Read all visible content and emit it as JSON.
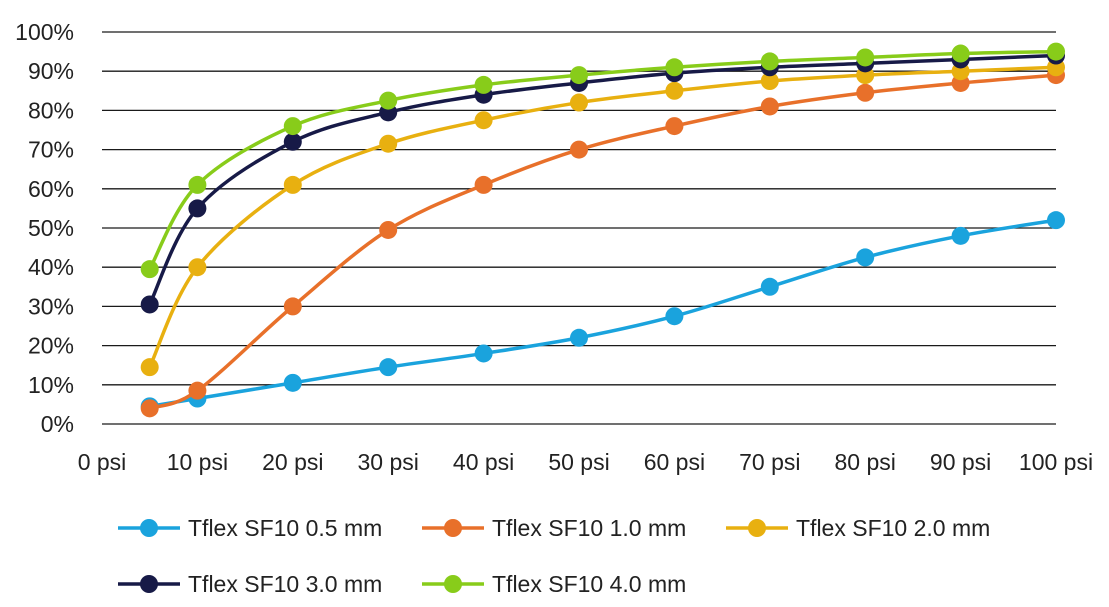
{
  "chart_data": {
    "type": "line",
    "title": "",
    "xlabel": "",
    "ylabel": "",
    "x_unit": "psi",
    "x_ticks": [
      "0 psi",
      "10 psi",
      "20 psi",
      "30 psi",
      "40 psi",
      "50 psi",
      "60 psi",
      "70 psi",
      "80 psi",
      "90 psi",
      "100 psi"
    ],
    "y_ticks": [
      "0%",
      "10%",
      "20%",
      "30%",
      "40%",
      "50%",
      "60%",
      "70%",
      "80%",
      "90%",
      "100%"
    ],
    "xlim": [
      0,
      100
    ],
    "ylim": [
      0,
      100
    ],
    "grid": "horizontal",
    "legend_position": "bottom",
    "x": [
      5,
      10,
      20,
      30,
      40,
      50,
      60,
      70,
      80,
      90,
      100
    ],
    "series": [
      {
        "name": "Tflex SF10 0.5 mm",
        "color": "#1AA3DD",
        "values": [
          4.5,
          6.5,
          10.5,
          14.5,
          18,
          22,
          27.5,
          35,
          42.5,
          48,
          52
        ]
      },
      {
        "name": "Tflex SF10 1.0 mm",
        "color": "#E8702A",
        "values": [
          4,
          8.5,
          30,
          49.5,
          61,
          70,
          76,
          81,
          84.5,
          87,
          89
        ]
      },
      {
        "name": "Tflex SF10 2.0 mm",
        "color": "#E8B010",
        "values": [
          14.5,
          40,
          61,
          71.5,
          77.5,
          82,
          85,
          87.5,
          89,
          90,
          91
        ]
      },
      {
        "name": "Tflex SF10 3.0 mm",
        "color": "#171A47",
        "values": [
          30.5,
          55,
          72,
          79.5,
          84,
          87,
          89.5,
          91,
          92,
          93,
          94
        ]
      },
      {
        "name": "Tflex SF10 4.0 mm",
        "color": "#88CC1A",
        "values": [
          39.5,
          61,
          76,
          82.5,
          86.5,
          89,
          91,
          92.5,
          93.5,
          94.5,
          95
        ]
      }
    ]
  }
}
